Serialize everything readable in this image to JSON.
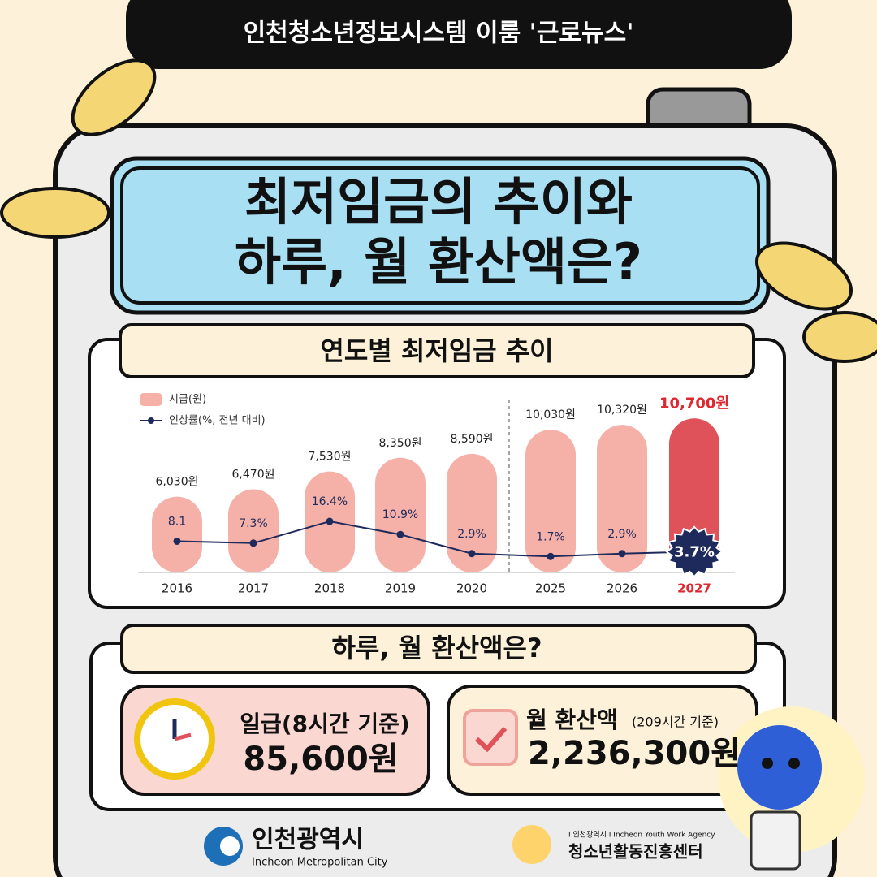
{
  "header": {
    "tag": "인천청소년정보시스템 이룸 '근로뉴스'",
    "title_lines": [
      "최저임금의 추이와",
      "하루, 월 환산액은?"
    ]
  },
  "chart_data": {
    "type": "bar",
    "title": "연도별 최저임금 추이",
    "categories": [
      "2016",
      "2017",
      "2018",
      "2019",
      "2020",
      "2025",
      "2026",
      "2027"
    ],
    "series": [
      {
        "name": "시급(원)",
        "color": "#f5b0a8",
        "colors": [
          "#f5b0a8",
          "#f5b0a8",
          "#f5b0a8",
          "#f5b0a8",
          "#f5b0a8",
          "#f5b0a8",
          "#f5b0a8",
          "#e0525a"
        ],
        "values": [
          6030,
          6470,
          7530,
          8350,
          8590,
          10030,
          10320,
          10700
        ],
        "value_labels": [
          "6,030원",
          "6,470원",
          "7,530원",
          "8,350원",
          "8,590원",
          "10,030원",
          "10,320원",
          "10,700원"
        ]
      },
      {
        "name": "인상률(%, 전년 대비)",
        "type": "line",
        "axis": "y2",
        "color": "#1f2a5c",
        "values": [
          8.1,
          7.3,
          16.4,
          10.9,
          2.9,
          1.7,
          2.9,
          3.7
        ],
        "value_labels": [
          "8.1",
          "7.3%",
          "16.4%",
          "10.9%",
          "2.9%",
          "1.7%",
          "2.9%",
          "3.7%"
        ]
      }
    ],
    "ylim": [
      1500,
      11200
    ],
    "y2lim": [
      -5,
      30
    ]
  },
  "summary": {
    "title": "하루, 월 환산액은?",
    "daily": {
      "label": "일급(8시간 기준)",
      "value": "85,600원"
    },
    "monthly": {
      "label": "월 환산액",
      "note": "(209시간 기준)",
      "value": "2,236,300원"
    }
  },
  "footer": {
    "city": "인천광역시",
    "city_en": "Incheon Metropolitan City",
    "agency_small": "I 인천광역시 I Incheon Youth Work Agency",
    "agency": "청소년활동진흥센터"
  }
}
